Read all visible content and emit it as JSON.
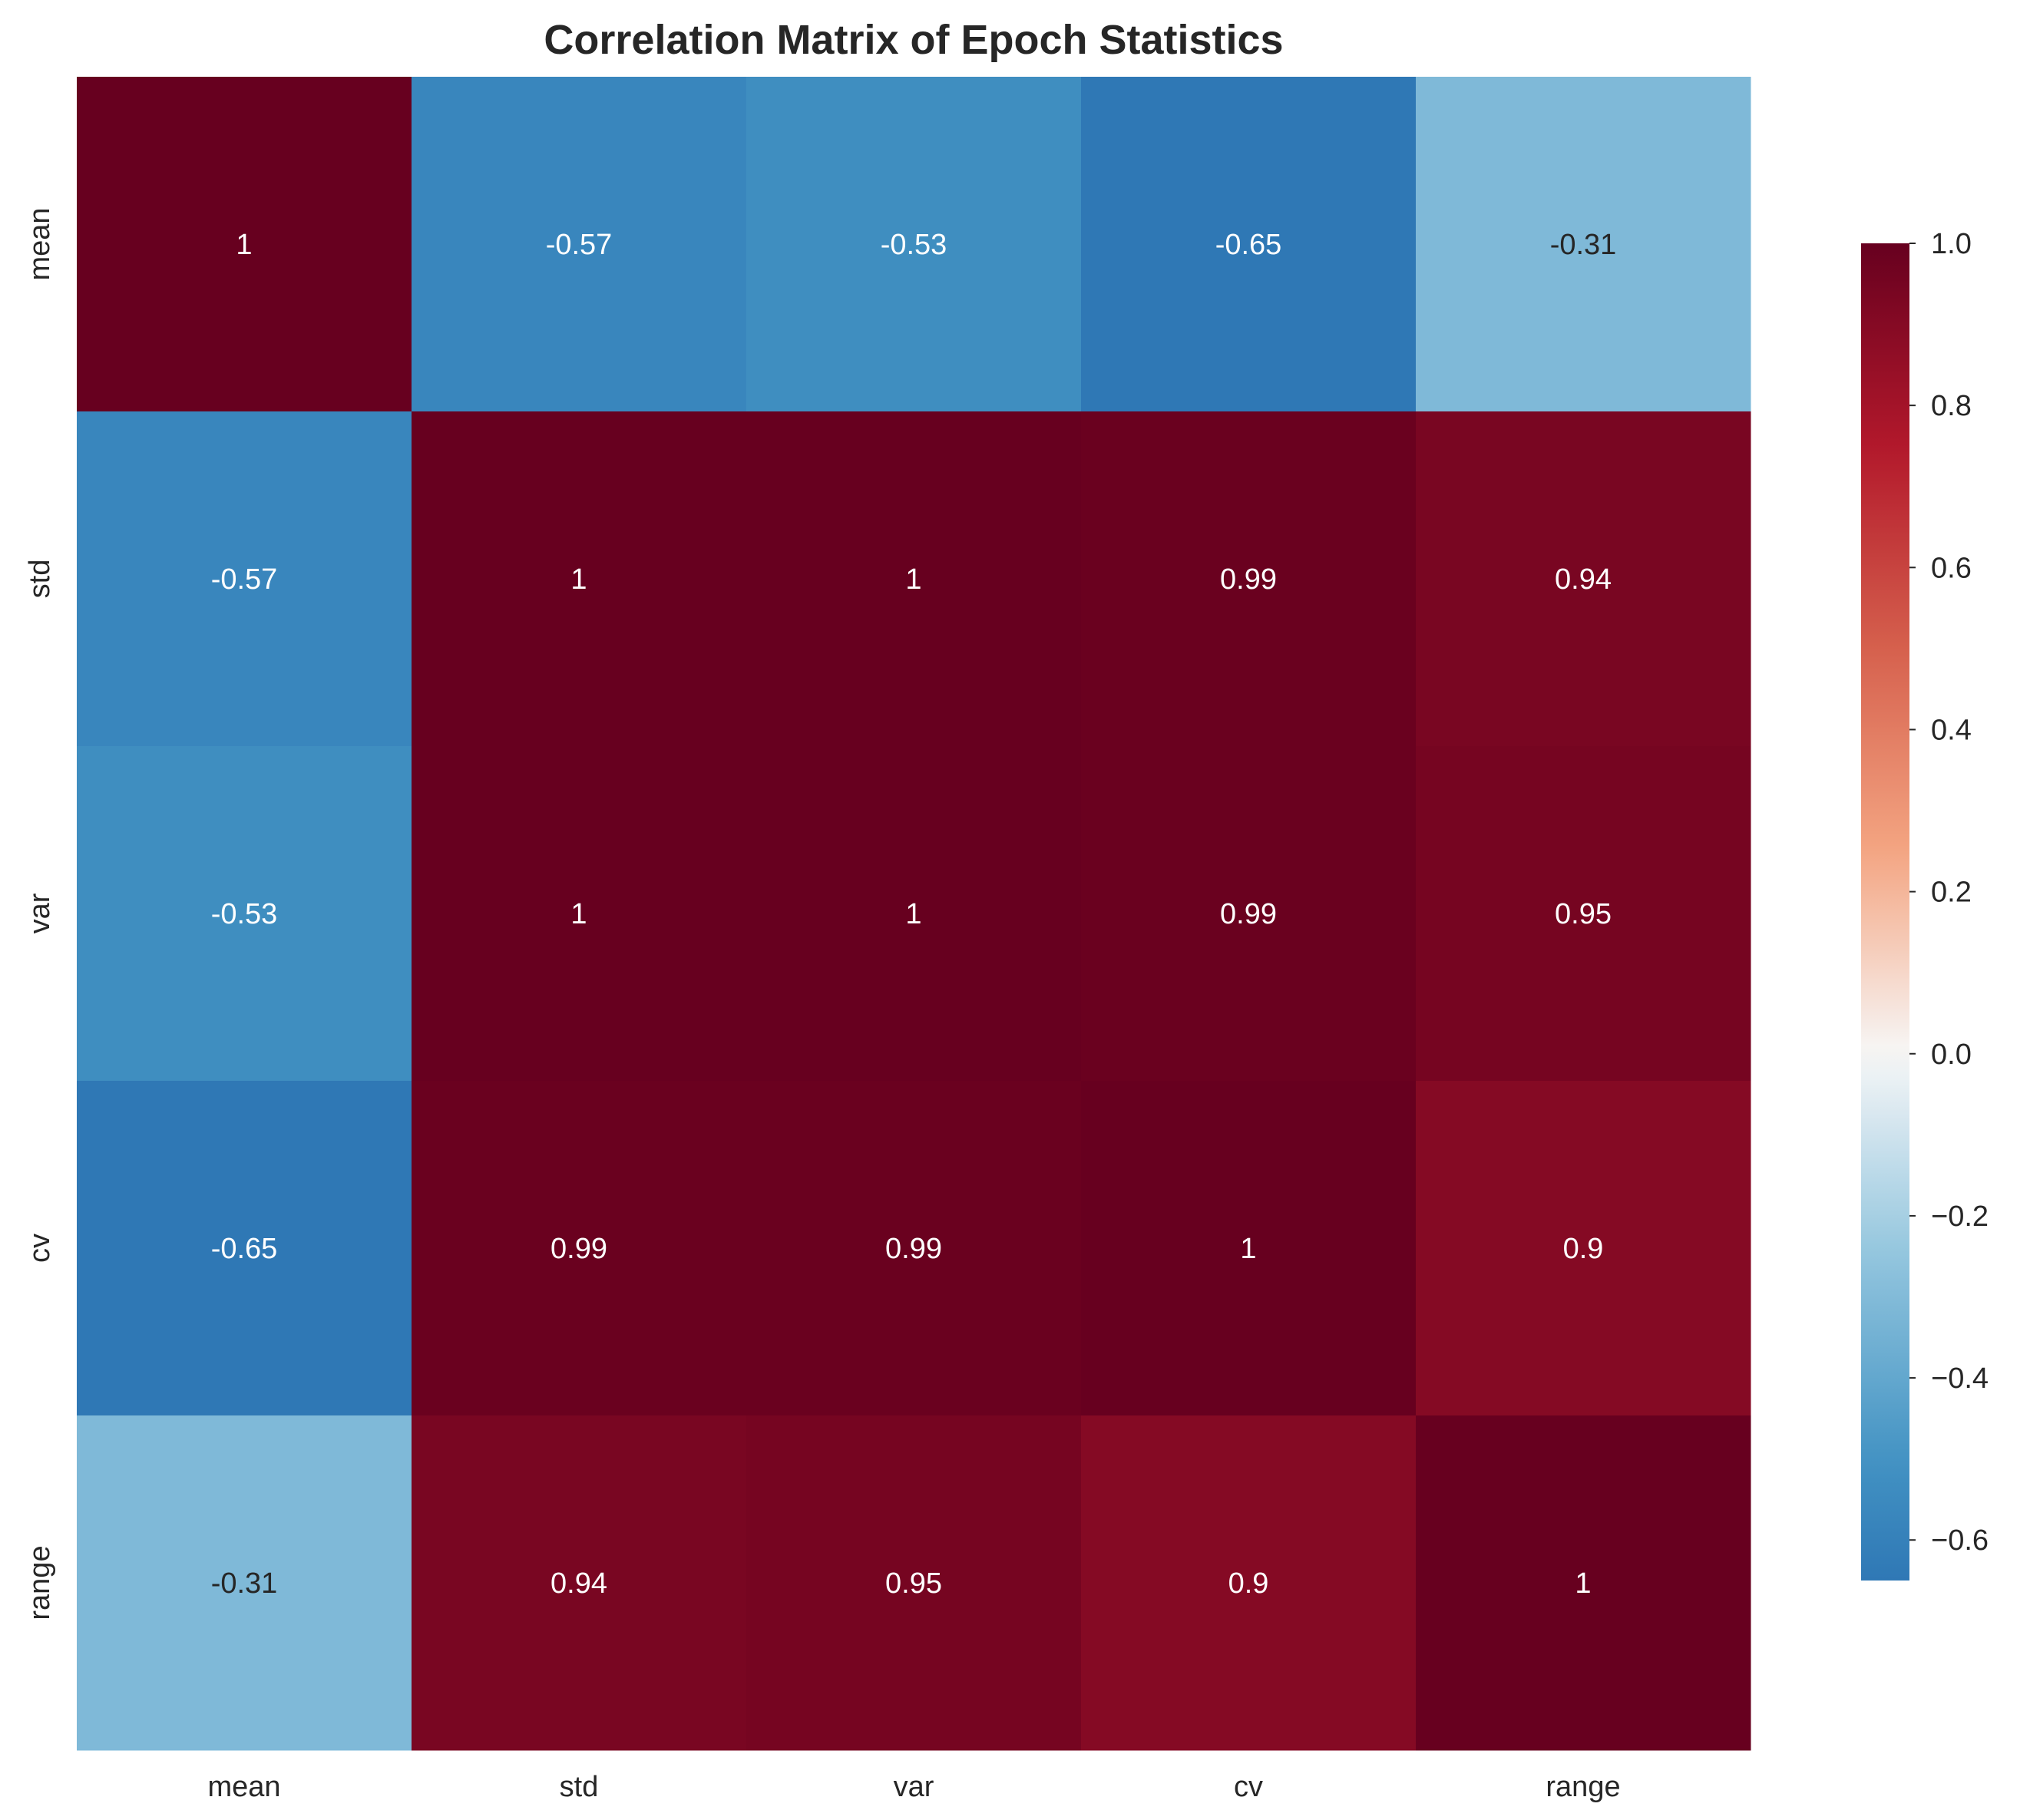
{
  "chart_data": {
    "type": "heatmap",
    "title": "Correlation Matrix of Epoch Statistics",
    "x_labels": [
      "mean",
      "std",
      "var",
      "cv",
      "range"
    ],
    "y_labels": [
      "mean",
      "std",
      "var",
      "cv",
      "range"
    ],
    "values": [
      [
        1,
        -0.57,
        -0.53,
        -0.65,
        -0.31
      ],
      [
        -0.57,
        1,
        1,
        0.99,
        0.94
      ],
      [
        -0.53,
        1,
        1,
        0.99,
        0.95
      ],
      [
        -0.65,
        0.99,
        0.99,
        1,
        0.9
      ],
      [
        -0.31,
        0.94,
        0.95,
        0.9,
        1
      ]
    ],
    "cell_labels": [
      [
        "1",
        "-0.57",
        "-0.53",
        "-0.65",
        "-0.31"
      ],
      [
        "-0.57",
        "1",
        "1",
        "0.99",
        "0.94"
      ],
      [
        "-0.53",
        "1",
        "1",
        "0.99",
        "0.95"
      ],
      [
        "-0.65",
        "0.99",
        "0.99",
        "1",
        "0.9"
      ],
      [
        "-0.31",
        "0.94",
        "0.95",
        "0.9",
        "1"
      ]
    ],
    "colormap": "RdBu_r",
    "colorbar": {
      "min": -0.65,
      "max": 1.0,
      "ticks": [
        1.0,
        0.8,
        0.6,
        0.4,
        0.2,
        0.0,
        -0.2,
        -0.4,
        -0.6
      ],
      "tick_labels": [
        "1.0",
        "0.8",
        "0.6",
        "0.4",
        "0.2",
        "0.0",
        "−0.2",
        "−0.4",
        "−0.6"
      ],
      "position": "right"
    },
    "xlabel": "",
    "ylabel": ""
  }
}
